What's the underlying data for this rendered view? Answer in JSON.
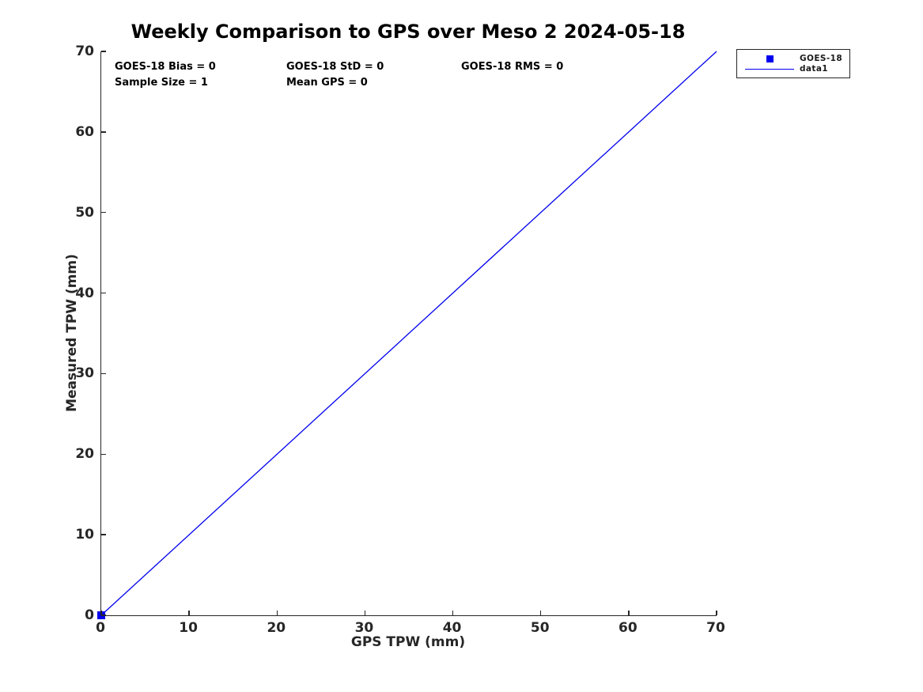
{
  "chart_data": {
    "type": "scatter",
    "title": "Weekly Comparison to GPS over Meso 2 2024-05-18",
    "xlabel": "GPS TPW (mm)",
    "ylabel": "Measured TPW (mm)",
    "xlim": [
      0,
      70
    ],
    "ylim": [
      0,
      70
    ],
    "xticks": [
      0,
      10,
      20,
      30,
      40,
      50,
      60,
      70
    ],
    "yticks": [
      0,
      10,
      20,
      30,
      40,
      50,
      60,
      70
    ],
    "grid": false,
    "box": false,
    "legend_position": "outside-top-right",
    "series": [
      {
        "name": "GOES-18",
        "type": "scatter",
        "marker": "filled-square",
        "marker_size": 10,
        "color": "#0000EE",
        "x": [
          0
        ],
        "y": [
          0
        ]
      },
      {
        "name": "data1",
        "type": "line",
        "color": "#0000EE",
        "line_width": 1.3,
        "x": [
          0,
          70
        ],
        "y": [
          0,
          70
        ]
      }
    ],
    "annotations": [
      "GOES-18 Bias = 0",
      "GOES-18 StD = 0",
      "GOES-18 RMS = 0",
      "Sample Size = 1",
      "Mean GPS = 0"
    ]
  },
  "stats": {
    "bias": "GOES-18 Bias = 0",
    "std": "GOES-18 StD = 0",
    "rms": "GOES-18 RMS = 0",
    "sample_size": "Sample Size = 1",
    "mean_gps": "Mean GPS = 0"
  },
  "legend": {
    "items": [
      {
        "label": "GOES-18",
        "marker": "square",
        "color": "#0000EE"
      },
      {
        "label": "data1",
        "marker": "line",
        "color": "#0000EE"
      }
    ]
  },
  "colors": {
    "axis": "#262626",
    "title_text": "#000000",
    "series_blue": "#0000EE",
    "background": "#ffffff"
  }
}
